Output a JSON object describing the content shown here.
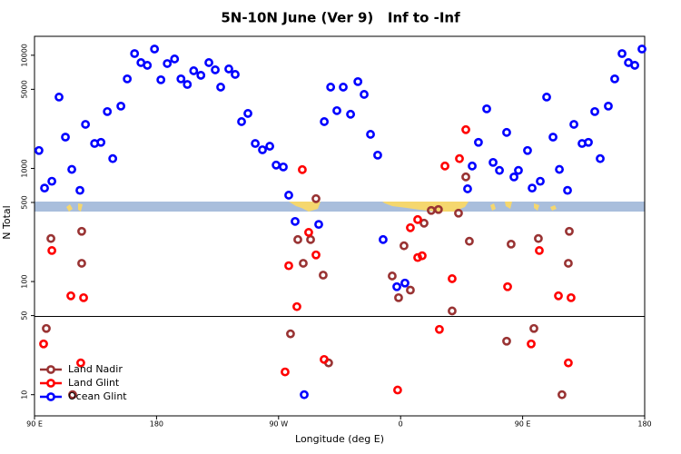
{
  "chart_data": {
    "type": "scatter",
    "title": "5N-10N June (Ver 9)   Inf to -Inf",
    "xlabel": "Longitude (deg E)",
    "ylabel": "N Total",
    "log_y": true,
    "grid": false,
    "legend": "bottomleft",
    "xlim": [
      90,
      540
    ],
    "xticks": [
      {
        "value": 90,
        "label": "90 E"
      },
      {
        "value": 180,
        "label": "180"
      },
      {
        "value": 270,
        "label": "90 W"
      },
      {
        "value": 360,
        "label": "0"
      },
      {
        "value": 450,
        "label": "90 E"
      },
      {
        "value": 540,
        "label": "180"
      }
    ],
    "ylim": [
      6.5,
      14700
    ],
    "yticks": [
      10,
      50,
      100,
      500,
      1000,
      5000,
      10000
    ],
    "series": [
      {
        "name": "Land Nadir",
        "color": "#993333",
        "x": [
          98.7,
          102.1,
          124.8,
          124.8,
          118.1,
          278.8,
          284.2,
          288.2,
          297.6,
          293.6,
          302.9,
          306.9,
          353.8,
          358.5,
          367.2,
          362.5,
          382.6,
          387.9,
          377.3,
          402.7,
          408.1,
          410.7,
          398,
          438.2,
          441.5,
          458.3,
          461.6,
          484.4,
          483.7,
          479
        ],
        "values": [
          38.5,
          240,
          278,
          145,
          10,
          34.5,
          235,
          145,
          540,
          235,
          114,
          19.1,
          112,
          72,
          84,
          207,
          425,
          433,
          328,
          402,
          841,
          227,
          55,
          29.7,
          214,
          38.5,
          240,
          278,
          145,
          10
        ]
      },
      {
        "name": "Land Glint",
        "color": "#ff0000",
        "x": [
          96.7,
          102.8,
          116.8,
          126.2,
          124.1,
          287.5,
          274.8,
          277.5,
          283.5,
          292.2,
          297.6,
          303.6,
          357.8,
          367.2,
          372.6,
          372.6,
          375.9,
          392.7,
          403.4,
          408.1,
          398,
          388.6,
          438.9,
          456.3,
          462.3,
          476.4,
          485.7,
          483.7
        ],
        "values": [
          28.1,
          188,
          74.8,
          72,
          19.1,
          975,
          15.9,
          138,
          60,
          272,
          172,
          20.5,
          11,
          299,
          353,
          163,
          169,
          1050,
          1220,
          2200,
          106,
          37.8,
          90,
          28.1,
          188,
          74.8,
          72,
          19.1
        ]
      },
      {
        "name": "Ocean Glint",
        "color": "#0000ff",
        "x": [
          93.3,
          97.4,
          102.8,
          108.1,
          112.8,
          117.5,
          123.5,
          127.6,
          134.3,
          139,
          143.7,
          147.7,
          153.7,
          158.4,
          163.8,
          168.5,
          173.2,
          178.5,
          183.2,
          187.9,
          193.3,
          198,
          202.7,
          207.4,
          212.7,
          218.6,
          223.3,
          227.3,
          233.3,
          238,
          242.7,
          247.4,
          252.8,
          258.1,
          263.5,
          268.2,
          273.5,
          277.5,
          282.2,
          288.9,
          299.6,
          303.7,
          308.4,
          313,
          317.7,
          323.1,
          328.5,
          333.1,
          337.8,
          343.1,
          347.1,
          357.2,
          363.2,
          409.4,
          412.8,
          417.4,
          423.5,
          428.2,
          432.9,
          438.2,
          443.6,
          446.9,
          453.6,
          457,
          463,
          467.7,
          472.4,
          477.1,
          483.1,
          487.8,
          493.8,
          498.5,
          503.2,
          507.2,
          513.2,
          517.9,
          523.3,
          528,
          532.7,
          538
        ],
        "values": [
          1440,
          670,
          770,
          4270,
          1890,
          980,
          640,
          2450,
          1660,
          1700,
          3180,
          1220,
          3550,
          6180,
          10350,
          8610,
          8150,
          11350,
          6070,
          8450,
          9270,
          6180,
          5520,
          7290,
          6650,
          8610,
          7430,
          5230,
          7570,
          6770,
          2590,
          3060,
          1660,
          1460,
          1570,
          1070,
          1030,
          580,
          340,
          10,
          320,
          2590,
          5230,
          3240,
          5230,
          3010,
          5850,
          4510,
          2000,
          1310,
          235,
          90,
          97,
          660,
          1050,
          1700,
          3360,
          1130,
          960,
          2080,
          840,
          960,
          1440,
          670,
          770,
          4270,
          1890,
          980,
          640,
          2450,
          1660,
          1700,
          3180,
          1220,
          3550,
          6180,
          10350,
          8610,
          8150,
          11350
        ]
      }
    ]
  }
}
